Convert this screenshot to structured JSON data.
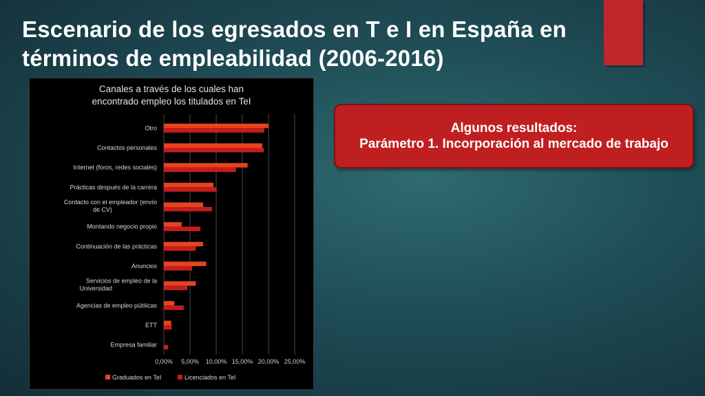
{
  "slide": {
    "title": "Escenario de los egresados en T e I  en España en términos de empleabilidad (2006-2016)"
  },
  "callout": {
    "line1": "Algunos resultados:",
    "line2": "Parámetro 1. Incorporación al mercado de trabajo"
  },
  "colors": {
    "accent_red": "#c0262a",
    "series_graduados": "#e8431f",
    "series_licenciados": "#c41d1d",
    "chart_background": "#000000"
  },
  "chart_data": {
    "type": "bar",
    "orientation": "horizontal",
    "title": "Canales a través de los cuales han encontrado empleo los titulados en TeI",
    "categories": [
      "Otro",
      "Contactos personales",
      "Internet (foros, redes sociales)",
      "Prácticas después de la carrera",
      "Contacto con el empleador (envío de CV)",
      "Montando negocio propio",
      "Continuación de las prácticas",
      "Anuncios",
      "Servicios de empleo de la Universidad",
      "Agencias de empleo públicas",
      "ETT",
      "Empresa familiar"
    ],
    "series": [
      {
        "name": "Graduados en TeI",
        "values": [
          20.0,
          18.8,
          16.0,
          9.5,
          7.5,
          3.4,
          7.5,
          8.1,
          6.1,
          2.0,
          1.4,
          0.0
        ]
      },
      {
        "name": "Licenciados en TeI",
        "values": [
          19.2,
          19.1,
          13.8,
          10.1,
          9.2,
          7.0,
          6.1,
          5.4,
          4.5,
          3.8,
          1.5,
          0.8
        ]
      }
    ],
    "xticks": [
      "0,00%",
      "5,00%",
      "10,00%",
      "15,00%",
      "20,00%",
      "25,00%"
    ],
    "xlim": [
      0,
      25
    ],
    "grid": "vertical",
    "legend": "bottom"
  }
}
